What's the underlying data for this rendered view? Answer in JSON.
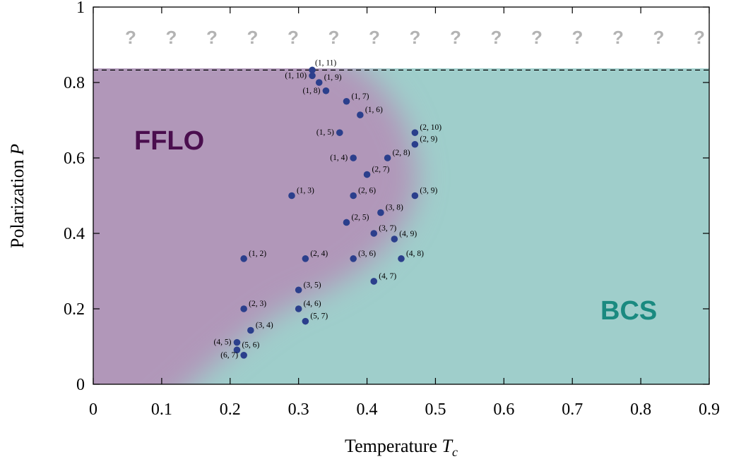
{
  "chart_data": {
    "type": "scatter",
    "title": "",
    "xlabel": "Temperature",
    "xlabel_symbol": "T",
    "xlabel_sub": "c",
    "ylabel": "Polarization",
    "ylabel_symbol": "P",
    "xlim": [
      0,
      0.9
    ],
    "ylim": [
      0,
      1
    ],
    "xticks": [
      "0",
      "0.1",
      "0.2",
      "0.3",
      "0.4",
      "0.5",
      "0.6",
      "0.7",
      "0.8",
      "0.9"
    ],
    "yticks": [
      "0",
      "0.2",
      "0.4",
      "0.6",
      "0.8",
      "1"
    ],
    "threshold_line": 0.833,
    "unknown_marker": "?",
    "unknown_count": 15,
    "regions": [
      {
        "label": "FFLO",
        "color": "#4a0e4e",
        "fill": "#b197b9"
      },
      {
        "label": "BCS",
        "color": "#1a8a80",
        "fill": "#9fcecb"
      }
    ],
    "point_color": "#2b3f8c",
    "points": [
      {
        "x": 0.32,
        "y": 0.833,
        "label": "(1, 11)"
      },
      {
        "x": 0.32,
        "y": 0.818,
        "label": "(1, 10)"
      },
      {
        "x": 0.33,
        "y": 0.8,
        "label": "(1, 9)"
      },
      {
        "x": 0.34,
        "y": 0.778,
        "label": "(1, 8)"
      },
      {
        "x": 0.37,
        "y": 0.75,
        "label": "(1, 7)"
      },
      {
        "x": 0.39,
        "y": 0.714,
        "label": "(1, 6)"
      },
      {
        "x": 0.36,
        "y": 0.667,
        "label": "(1, 5)"
      },
      {
        "x": 0.38,
        "y": 0.6,
        "label": "(1, 4)"
      },
      {
        "x": 0.29,
        "y": 0.5,
        "label": "(1, 3)"
      },
      {
        "x": 0.22,
        "y": 0.333,
        "label": "(1, 2)"
      },
      {
        "x": 0.47,
        "y": 0.667,
        "label": "(2, 10)"
      },
      {
        "x": 0.47,
        "y": 0.636,
        "label": "(2, 9)"
      },
      {
        "x": 0.43,
        "y": 0.6,
        "label": "(2, 8)"
      },
      {
        "x": 0.4,
        "y": 0.556,
        "label": "(2, 7)"
      },
      {
        "x": 0.38,
        "y": 0.5,
        "label": "(2, 6)"
      },
      {
        "x": 0.37,
        "y": 0.429,
        "label": "(2, 5)"
      },
      {
        "x": 0.31,
        "y": 0.333,
        "label": "(2, 4)"
      },
      {
        "x": 0.22,
        "y": 0.2,
        "label": "(2, 3)"
      },
      {
        "x": 0.47,
        "y": 0.5,
        "label": "(3, 9)"
      },
      {
        "x": 0.42,
        "y": 0.455,
        "label": "(3, 8)"
      },
      {
        "x": 0.41,
        "y": 0.4,
        "label": "(3, 7)"
      },
      {
        "x": 0.38,
        "y": 0.333,
        "label": "(3, 6)"
      },
      {
        "x": 0.3,
        "y": 0.25,
        "label": "(3, 5)"
      },
      {
        "x": 0.23,
        "y": 0.143,
        "label": "(3, 4)"
      },
      {
        "x": 0.44,
        "y": 0.385,
        "label": "(4, 9)"
      },
      {
        "x": 0.45,
        "y": 0.333,
        "label": "(4, 8)"
      },
      {
        "x": 0.41,
        "y": 0.273,
        "label": "(4, 7)"
      },
      {
        "x": 0.3,
        "y": 0.2,
        "label": "(4, 6)"
      },
      {
        "x": 0.21,
        "y": 0.111,
        "label": "(4, 5)"
      },
      {
        "x": 0.31,
        "y": 0.167,
        "label": "(5, 7)"
      },
      {
        "x": 0.21,
        "y": 0.091,
        "label": "(5, 6)"
      },
      {
        "x": 0.22,
        "y": 0.077,
        "label": "(6, 7)"
      }
    ]
  }
}
